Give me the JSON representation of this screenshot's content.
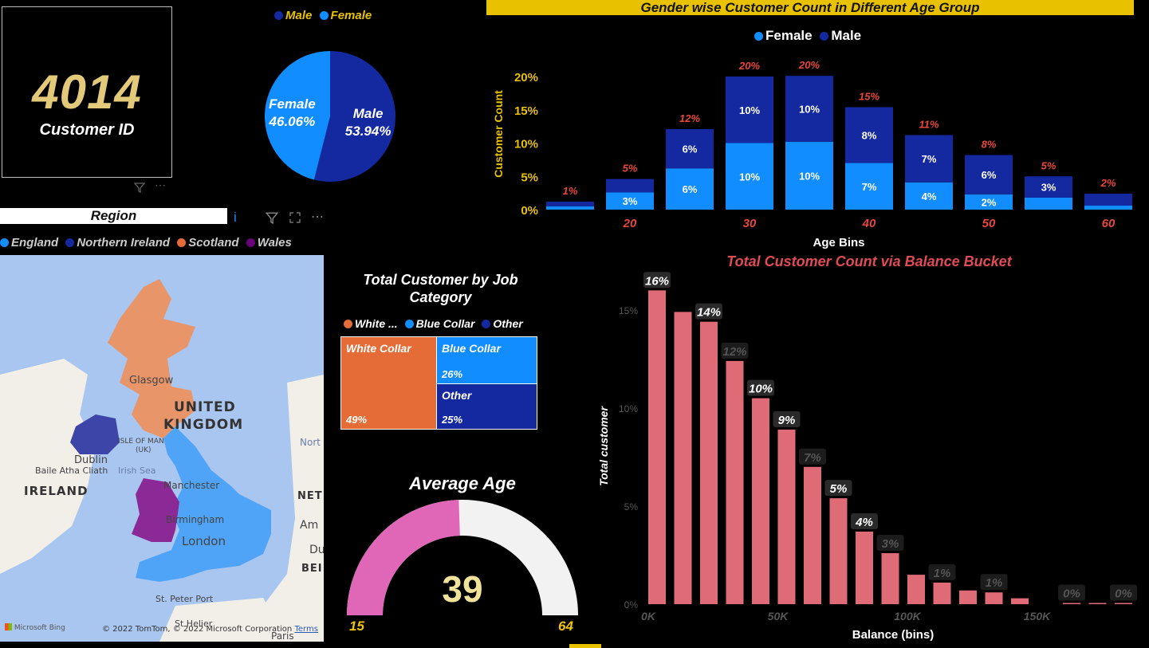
{
  "kpi": {
    "value": "4014",
    "label": "Customer ID"
  },
  "gender_legend": [
    {
      "label": "Male",
      "color": "#1428a0"
    },
    {
      "label": "Female",
      "color": "#118dff"
    }
  ],
  "age_chart": {
    "title": "Gender wise Customer Count in Different Age Group",
    "legend": [
      {
        "label": "Female",
        "color": "#118dff"
      },
      {
        "label": "Male",
        "color": "#1428a0"
      }
    ]
  },
  "region": {
    "title": "Region",
    "legend": [
      {
        "label": "England",
        "color": "#118dff"
      },
      {
        "label": "Northern Ireland",
        "color": "#1428a0"
      },
      {
        "label": "Scotland",
        "color": "#e66c37"
      },
      {
        "label": "Wales",
        "color": "#6b007b"
      }
    ],
    "map_labels": {
      "glasgow": "Glasgow",
      "united": "UNITED",
      "kingdom": "KINGDOM",
      "isle_of_man": "ISLE OF MAN",
      "uk": "(UK)",
      "dublin": "Dublin",
      "baile": "Baile Atha Cliath",
      "irish_sea": "Irish Sea",
      "ireland": "IRELAND",
      "manchester": "Manchester",
      "birmingham": "Birmingham",
      "london": "London",
      "st_peter": "St. Peter Port",
      "st_helier": "St Helier",
      "paris": "Paris",
      "nort": "Nort",
      "net": "NET",
      "am": "Am",
      "du": "Du",
      "bei": "BEI",
      "bing": "Microsoft Bing",
      "copyright": "© 2022 TomTom, © 2022 Microsoft Corporation",
      "terms": "Terms"
    }
  },
  "job": {
    "title": "Total Customer by Job Category",
    "legend": [
      {
        "label": "White ...",
        "color": "#e66c37"
      },
      {
        "label": "Blue Collar",
        "color": "#118dff"
      },
      {
        "label": "Other",
        "color": "#1428a0"
      }
    ],
    "tiles": [
      {
        "label": "White Collar",
        "pct": "49%",
        "color": "#e66c37"
      },
      {
        "label": "Blue Collar",
        "pct": "26%",
        "color": "#118dff"
      },
      {
        "label": "Other",
        "pct": "25%",
        "color": "#1428a0"
      }
    ]
  },
  "gauge": {
    "title": "Average Age",
    "value": "39",
    "min": "15",
    "max": "64",
    "value_num": 39,
    "min_num": 15,
    "max_num": 64,
    "fill_color": "#e067b8",
    "track_color": "#f2f2f2"
  },
  "balance": {
    "title": "Total Customer Count via Balance Bucket"
  },
  "chart_data": [
    {
      "type": "pie",
      "labels": [
        "Male",
        "Female"
      ],
      "values": [
        53.94,
        46.06
      ],
      "data_labels": [
        "Male\n53.94%",
        "Female\n46.06%"
      ],
      "colors": [
        "#1428a0",
        "#118dff"
      ],
      "legend": "top"
    },
    {
      "type": "bar",
      "stacked": true,
      "title": "Gender wise Customer Count in Different Age Group",
      "xlabel": "Age Bins",
      "ylabel": "Customer Count",
      "x_ticks": [
        "20",
        "30",
        "40",
        "50",
        "60"
      ],
      "y_ticks": [
        "0%",
        "5%",
        "10%",
        "15%",
        "20%"
      ],
      "ylim": [
        0,
        21
      ],
      "bins": [
        15,
        20,
        25,
        30,
        35,
        40,
        45,
        50,
        55,
        60
      ],
      "series": [
        {
          "name": "Female",
          "color": "#118dff",
          "values": [
            0.5,
            2.6,
            6.2,
            10.0,
            10.2,
            7.0,
            4.1,
            2.3,
            1.8,
            0.6
          ],
          "labels": [
            "",
            "3%",
            "6%",
            "10%",
            "10%",
            "7%",
            "4%",
            "2%",
            "",
            ""
          ]
        },
        {
          "name": "Male",
          "color": "#1428a0",
          "values": [
            0.7,
            2.0,
            5.9,
            10.0,
            9.9,
            8.4,
            7.1,
            5.9,
            3.2,
            1.8
          ],
          "labels": [
            "",
            "",
            "6%",
            "10%",
            "10%",
            "8%",
            "7%",
            "6%",
            "3%",
            ""
          ]
        }
      ],
      "totals": [
        "1%",
        "5%",
        "12%",
        "20%",
        "20%",
        "15%",
        "11%",
        "8%",
        "5%",
        "2%"
      ],
      "legend": "top"
    },
    {
      "type": "bar",
      "title": "Total Customer Count via Balance Bucket",
      "xlabel": "Balance (bins)",
      "ylabel": "Total customer",
      "x_ticks": [
        "0K",
        "50K",
        "100K",
        "150K"
      ],
      "y_ticks": [
        "0%",
        "5%",
        "10%",
        "15%"
      ],
      "ylim": [
        0,
        16.5
      ],
      "bin_width_k": 10,
      "values": [
        16.0,
        14.9,
        14.4,
        12.4,
        10.5,
        8.9,
        7.0,
        5.4,
        3.7,
        2.6,
        1.5,
        1.1,
        0.7,
        0.6,
        0.3,
        0.0,
        0.05,
        0.05,
        0.05
      ],
      "data_labels": [
        "16%",
        "",
        "14%",
        "12%",
        "10%",
        "9%",
        "7%",
        "5%",
        "4%",
        "3%",
        "",
        "1%",
        "",
        "1%",
        "",
        "",
        "0%",
        "",
        "0%"
      ],
      "color": "#de6b76"
    }
  ]
}
